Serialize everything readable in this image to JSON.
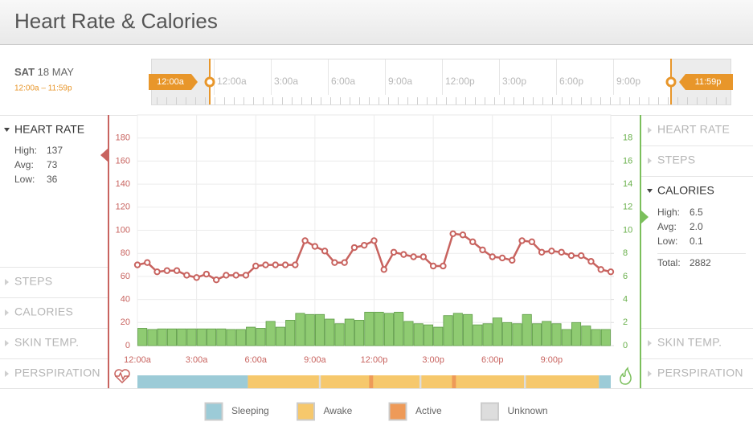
{
  "header": {
    "title": "Heart Rate & Calories"
  },
  "date": {
    "day": "SAT",
    "date": "18 MAY",
    "range": "12:00a – 11:59p"
  },
  "timeline": {
    "ticks": [
      "12:00a",
      "3:00a",
      "6:00a",
      "9:00a",
      "12:00p",
      "3:00p",
      "6:00p",
      "9:00p"
    ],
    "start_handle": "12:00a",
    "end_handle": "11:59p"
  },
  "left_panel": {
    "title": "HEART RATE",
    "stats": [
      [
        "High:",
        "137"
      ],
      [
        "Avg:",
        "73"
      ],
      [
        "Low:",
        "36"
      ]
    ],
    "items": [
      "STEPS",
      "CALORIES",
      "SKIN TEMP.",
      "PERSPIRATION"
    ]
  },
  "right_panel": {
    "items_top": [
      "HEART RATE",
      "STEPS"
    ],
    "title": "CALORIES",
    "stats": [
      [
        "High:",
        "6.5"
      ],
      [
        "Avg:",
        "2.0"
      ],
      [
        "Low:",
        "0.1"
      ]
    ],
    "total": [
      "Total:",
      "2882"
    ],
    "items_bottom": [
      "SKIN TEMP.",
      "PERSPIRATION"
    ]
  },
  "chart_data": {
    "type": "combo",
    "xlim": [
      0,
      24
    ],
    "xticks": [
      {
        "value": 0,
        "label": "12:00a"
      },
      {
        "value": 3,
        "label": "3:00a"
      },
      {
        "value": 6,
        "label": "6:00a"
      },
      {
        "value": 9,
        "label": "9:00a"
      },
      {
        "value": 12,
        "label": "12:00p"
      },
      {
        "value": 15,
        "label": "3:00p"
      },
      {
        "value": 18,
        "label": "6:00p"
      },
      {
        "value": 21,
        "label": "9:00p"
      }
    ],
    "ylim": [
      0,
      200
    ],
    "yticks": [
      0,
      20,
      40,
      60,
      80,
      100,
      120,
      140,
      160,
      180
    ],
    "y2lim": [
      0,
      20
    ],
    "y2ticks": [
      0,
      2,
      4,
      6,
      8,
      10,
      12,
      14,
      16,
      18
    ],
    "grid": true,
    "series": [
      {
        "type": "bar",
        "axis": "y2",
        "color": "#8fcb72",
        "bins": [
          0,
          0.5,
          1,
          1.5,
          2,
          2.5,
          3,
          3.5,
          4,
          4.5,
          5,
          5.5,
          6,
          6.5,
          7,
          7.5,
          8,
          8.5,
          9,
          9.5,
          10,
          10.5,
          11,
          11.5,
          12,
          12.5,
          13,
          13.5,
          14,
          14.5,
          15,
          15.5,
          16,
          16.5,
          17,
          17.5,
          18,
          18.5,
          19,
          19.5,
          20,
          20.5,
          21,
          21.5,
          22,
          22.5,
          23,
          23.5,
          24
        ],
        "values": [
          1.5,
          1.4,
          1.45,
          1.45,
          1.45,
          1.45,
          1.45,
          1.45,
          1.45,
          1.4,
          1.4,
          1.6,
          1.5,
          2.1,
          1.6,
          2.2,
          2.8,
          2.7,
          2.7,
          2.3,
          1.9,
          2.3,
          2.2,
          2.9,
          2.9,
          2.8,
          2.9,
          2.1,
          1.9,
          1.8,
          1.6,
          2.6,
          2.8,
          2.7,
          1.8,
          1.9,
          2.4,
          2.0,
          1.9,
          2.7,
          1.9,
          2.1,
          1.9,
          1.4,
          2.0,
          1.7,
          1.4,
          1.4
        ]
      },
      {
        "type": "line",
        "color": "#c8635f",
        "x": [
          0,
          0.5,
          1,
          1.5,
          2,
          2.5,
          3,
          3.5,
          4,
          4.5,
          5,
          5.5,
          6,
          6.5,
          7,
          7.5,
          8,
          8.5,
          9,
          9.5,
          10,
          10.5,
          11,
          11.5,
          12,
          12.5,
          13,
          13.5,
          14,
          14.5,
          15,
          15.5,
          16,
          16.5,
          17,
          17.5,
          18,
          18.5,
          19,
          19.5,
          20,
          20.5,
          21,
          21.5,
          22,
          22.5,
          23,
          23.5,
          24
        ],
        "values": [
          70,
          72,
          64,
          65,
          65,
          61,
          59,
          62,
          57,
          61,
          61,
          61,
          69,
          70,
          70,
          70,
          70,
          91,
          86,
          82,
          72,
          72,
          85,
          87,
          91,
          66,
          81,
          79,
          77,
          77,
          69,
          69,
          97,
          96,
          90,
          83,
          77,
          76,
          74,
          91,
          90,
          81,
          82,
          81,
          78,
          78,
          73,
          66,
          64
        ]
      }
    ]
  },
  "activity": [
    {
      "state": "Sleeping",
      "start": 0,
      "end": 5.6
    },
    {
      "state": "Awake",
      "start": 5.6,
      "end": 23.4
    },
    {
      "state": "Unknown",
      "start": 9.2,
      "end": 9.3
    },
    {
      "state": "Active",
      "start": 11.75,
      "end": 11.95
    },
    {
      "state": "Unknown",
      "start": 14.3,
      "end": 14.4
    },
    {
      "state": "Active",
      "start": 15.95,
      "end": 16.15
    },
    {
      "state": "Unknown",
      "start": 19.6,
      "end": 19.7
    },
    {
      "state": "Sleeping",
      "start": 23.4,
      "end": 24
    }
  ],
  "legend": [
    {
      "label": "Sleeping",
      "color": "#9ccbd7"
    },
    {
      "label": "Awake",
      "color": "#f6c86c"
    },
    {
      "label": "Active",
      "color": "#ee9a58"
    },
    {
      "label": "Unknown",
      "color": "#dddddd"
    }
  ]
}
